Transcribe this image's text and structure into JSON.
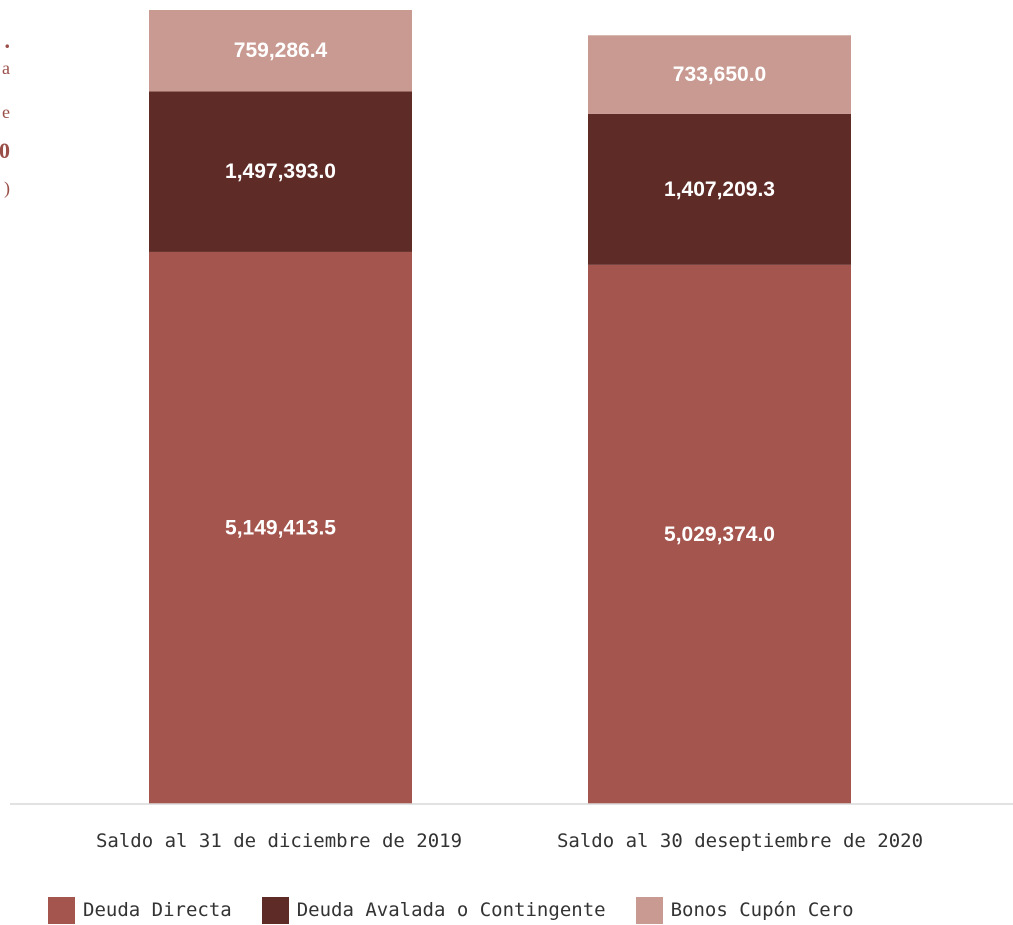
{
  "chart_data": {
    "type": "bar",
    "stacked": true,
    "categories": [
      "Saldo al 31 de diciembre de 2019",
      "Saldo al 30 deseptiembre de 2020"
    ],
    "series": [
      {
        "name": "Deuda Directa",
        "color": "#a3554e",
        "values": [
          5149413.5,
          5029374.0
        ],
        "labels": [
          "5,149,413.5",
          "5,029,374.0"
        ]
      },
      {
        "name": "Deuda Avalada o Contingente",
        "color": "#5f2b27",
        "values": [
          1497393.0,
          1407209.3
        ],
        "labels": [
          "1,497,393.0",
          "1,407,209.3"
        ]
      },
      {
        "name": "Bonos Cupón Cero",
        "color": "#c89a91",
        "values": [
          759286.4,
          733650.0
        ],
        "labels": [
          "759,286.4",
          "733,650.0"
        ]
      }
    ],
    "legend_position": "bottom",
    "grid": false,
    "axis_color": "#d9d9d9"
  }
}
